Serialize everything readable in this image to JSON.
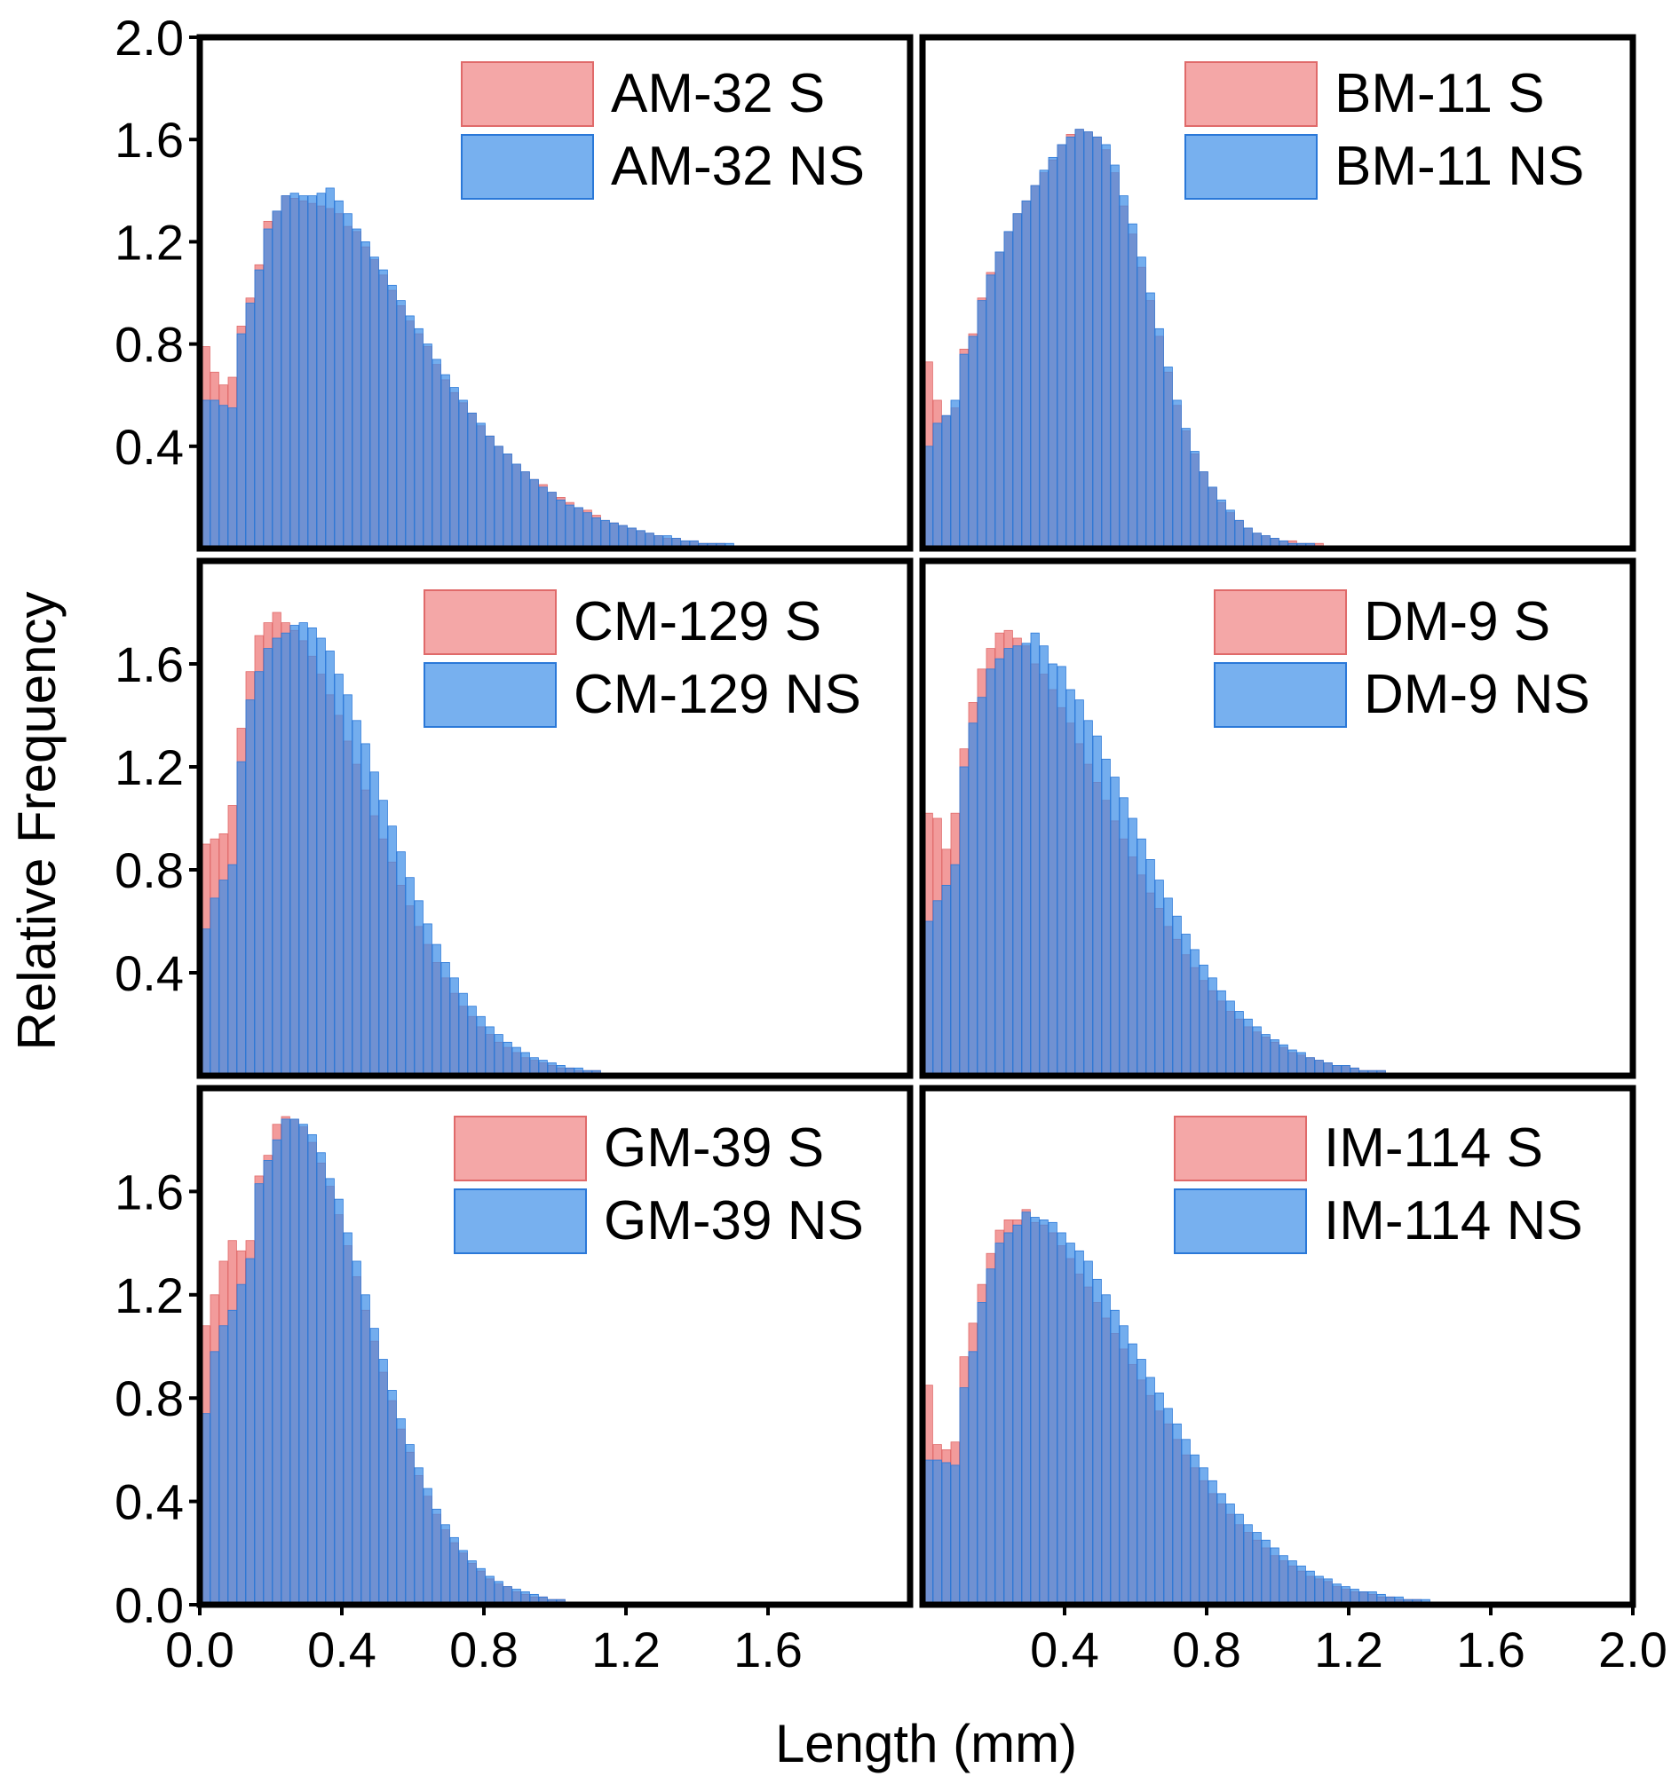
{
  "figure": {
    "ylabel": "Relative Frequency",
    "xlabel": "Length (mm)",
    "colors": {
      "S": "#f08a8a",
      "NS": "#3d8ee8",
      "overlap": "#5a5ed8"
    }
  },
  "chart_data": [
    {
      "type": "bar",
      "title": "",
      "bin_width": 0.025,
      "xlim": [
        0,
        2.0
      ],
      "ylim": [
        0,
        2.0
      ],
      "x_ticks": [],
      "y_ticks": [
        "0.4",
        "0.8",
        "1.2",
        "1.6",
        "2.0"
      ],
      "series": [
        {
          "name": "AM-32 S",
          "values": [
            0.79,
            0.69,
            0.64,
            0.67,
            0.87,
            0.98,
            1.11,
            1.28,
            1.32,
            1.38,
            1.37,
            1.36,
            1.35,
            1.34,
            1.33,
            1.31,
            1.26,
            1.24,
            1.18,
            1.13,
            1.07,
            1.01,
            0.95,
            0.89,
            0.84,
            0.79,
            0.72,
            0.66,
            0.61,
            0.57,
            0.53,
            0.48,
            0.44,
            0.4,
            0.37,
            0.33,
            0.3,
            0.27,
            0.25,
            0.22,
            0.2,
            0.18,
            0.16,
            0.15,
            0.13,
            0.11,
            0.1,
            0.09,
            0.08,
            0.07,
            0.06,
            0.05,
            0.04,
            0.04,
            0.03,
            0.03,
            0.02,
            0.02,
            0.02,
            0.01,
            0.01,
            0.01,
            0.01,
            0.01,
            0.01,
            0.0,
            0.0,
            0.0,
            0.0,
            0.0,
            0.0,
            0.0,
            0.0,
            0.0,
            0.0,
            0.0,
            0.0,
            0.0,
            0.0,
            0.0
          ]
        },
        {
          "name": "AM-32 NS",
          "values": [
            0.58,
            0.58,
            0.56,
            0.55,
            0.84,
            0.96,
            1.09,
            1.25,
            1.32,
            1.38,
            1.39,
            1.38,
            1.38,
            1.39,
            1.41,
            1.36,
            1.31,
            1.25,
            1.2,
            1.14,
            1.09,
            1.03,
            0.97,
            0.91,
            0.86,
            0.8,
            0.74,
            0.68,
            0.63,
            0.58,
            0.53,
            0.49,
            0.44,
            0.4,
            0.37,
            0.33,
            0.3,
            0.27,
            0.24,
            0.22,
            0.19,
            0.17,
            0.16,
            0.14,
            0.12,
            0.11,
            0.1,
            0.09,
            0.08,
            0.07,
            0.06,
            0.05,
            0.05,
            0.04,
            0.03,
            0.03,
            0.02,
            0.02,
            0.02,
            0.02,
            0.01,
            0.01,
            0.01,
            0.01,
            0.01,
            0.01,
            0.0,
            0.0,
            0.0,
            0.0,
            0.0,
            0.0,
            0.0,
            0.0,
            0.0,
            0.0,
            0.0,
            0.0,
            0.0,
            0.0
          ]
        }
      ]
    },
    {
      "type": "bar",
      "title": "",
      "bin_width": 0.025,
      "xlim": [
        0,
        2.0
      ],
      "ylim": [
        0,
        2.0
      ],
      "x_ticks": [],
      "y_ticks": [],
      "series": [
        {
          "name": "BM-11 S",
          "values": [
            0.73,
            0.58,
            0.52,
            0.55,
            0.78,
            0.84,
            0.98,
            1.08,
            1.16,
            1.24,
            1.31,
            1.36,
            1.42,
            1.47,
            1.52,
            1.58,
            1.62,
            1.64,
            1.63,
            1.61,
            1.56,
            1.47,
            1.34,
            1.23,
            1.1,
            0.97,
            0.83,
            0.69,
            0.56,
            0.46,
            0.37,
            0.3,
            0.24,
            0.18,
            0.14,
            0.11,
            0.08,
            0.06,
            0.05,
            0.04,
            0.03,
            0.03,
            0.02,
            0.02,
            0.02,
            0.01,
            0.01,
            0.0,
            0.0,
            0.0,
            0.0,
            0.0,
            0.0,
            0.0,
            0.0,
            0.0,
            0.0,
            0.0,
            0.0,
            0.0,
            0.0,
            0.0,
            0.0,
            0.0,
            0.0,
            0.0,
            0.0,
            0.0,
            0.0,
            0.0,
            0.0,
            0.0,
            0.0,
            0.0,
            0.0,
            0.0,
            0.0,
            0.0,
            0.0,
            0.0
          ]
        },
        {
          "name": "BM-11 NS",
          "values": [
            0.4,
            0.49,
            0.52,
            0.58,
            0.76,
            0.83,
            0.97,
            1.07,
            1.16,
            1.24,
            1.31,
            1.36,
            1.42,
            1.48,
            1.53,
            1.58,
            1.61,
            1.64,
            1.63,
            1.61,
            1.58,
            1.5,
            1.38,
            1.27,
            1.14,
            1.0,
            0.86,
            0.71,
            0.58,
            0.47,
            0.38,
            0.3,
            0.24,
            0.19,
            0.15,
            0.11,
            0.08,
            0.06,
            0.05,
            0.04,
            0.03,
            0.02,
            0.02,
            0.02,
            0.01,
            0.01,
            0.0,
            0.0,
            0.0,
            0.0,
            0.0,
            0.0,
            0.0,
            0.0,
            0.0,
            0.0,
            0.0,
            0.0,
            0.0,
            0.0,
            0.0,
            0.0,
            0.0,
            0.0,
            0.0,
            0.0,
            0.0,
            0.0,
            0.0,
            0.0,
            0.0,
            0.0,
            0.0,
            0.0,
            0.0,
            0.0,
            0.0,
            0.0,
            0.0,
            0.0
          ]
        }
      ]
    },
    {
      "type": "bar",
      "title": "",
      "bin_width": 0.025,
      "xlim": [
        0,
        2.0
      ],
      "ylim": [
        0,
        2.0
      ],
      "x_ticks": [],
      "y_ticks": [
        "0.4",
        "0.8",
        "1.2",
        "1.6"
      ],
      "series": [
        {
          "name": "CM-129 S",
          "values": [
            0.9,
            0.92,
            0.94,
            1.05,
            1.35,
            1.57,
            1.71,
            1.76,
            1.8,
            1.76,
            1.73,
            1.69,
            1.63,
            1.56,
            1.48,
            1.4,
            1.3,
            1.21,
            1.11,
            1.01,
            0.92,
            0.83,
            0.74,
            0.66,
            0.58,
            0.51,
            0.44,
            0.38,
            0.32,
            0.27,
            0.23,
            0.19,
            0.16,
            0.13,
            0.11,
            0.09,
            0.07,
            0.06,
            0.05,
            0.04,
            0.03,
            0.03,
            0.02,
            0.02,
            0.02,
            0.01,
            0.01,
            0.01,
            0.0,
            0.0,
            0.0,
            0.0,
            0.0,
            0.0,
            0.0,
            0.0,
            0.0,
            0.0,
            0.0,
            0.0,
            0.0,
            0.0,
            0.0,
            0.0,
            0.0,
            0.0,
            0.0,
            0.0,
            0.0,
            0.0,
            0.0,
            0.0,
            0.0,
            0.0,
            0.0,
            0.0,
            0.0,
            0.0,
            0.0,
            0.0
          ]
        },
        {
          "name": "CM-129 NS",
          "values": [
            0.57,
            0.69,
            0.76,
            0.82,
            1.22,
            1.46,
            1.57,
            1.66,
            1.7,
            1.72,
            1.75,
            1.76,
            1.74,
            1.7,
            1.65,
            1.56,
            1.48,
            1.38,
            1.29,
            1.18,
            1.07,
            0.97,
            0.87,
            0.77,
            0.68,
            0.59,
            0.51,
            0.44,
            0.38,
            0.32,
            0.27,
            0.23,
            0.19,
            0.16,
            0.13,
            0.11,
            0.09,
            0.07,
            0.06,
            0.05,
            0.04,
            0.03,
            0.03,
            0.02,
            0.02,
            0.01,
            0.01,
            0.01,
            0.0,
            0.0,
            0.0,
            0.0,
            0.0,
            0.0,
            0.0,
            0.0,
            0.0,
            0.0,
            0.0,
            0.0,
            0.0,
            0.0,
            0.0,
            0.0,
            0.0,
            0.0,
            0.0,
            0.0,
            0.0,
            0.0,
            0.0,
            0.0,
            0.0,
            0.0,
            0.0,
            0.0,
            0.0,
            0.0,
            0.0,
            0.0
          ]
        }
      ]
    },
    {
      "type": "bar",
      "title": "",
      "bin_width": 0.025,
      "xlim": [
        0,
        2.0
      ],
      "ylim": [
        0,
        2.0
      ],
      "x_ticks": [],
      "y_ticks": [],
      "series": [
        {
          "name": "DM-9 S",
          "values": [
            1.02,
            1.0,
            0.88,
            1.02,
            1.27,
            1.45,
            1.58,
            1.66,
            1.72,
            1.73,
            1.7,
            1.67,
            1.6,
            1.56,
            1.5,
            1.43,
            1.37,
            1.29,
            1.21,
            1.14,
            1.07,
            0.99,
            0.92,
            0.85,
            0.78,
            0.71,
            0.65,
            0.58,
            0.53,
            0.47,
            0.42,
            0.37,
            0.33,
            0.29,
            0.25,
            0.22,
            0.19,
            0.17,
            0.15,
            0.13,
            0.11,
            0.09,
            0.08,
            0.07,
            0.06,
            0.05,
            0.04,
            0.04,
            0.03,
            0.02,
            0.02,
            0.02,
            0.01,
            0.01,
            0.01,
            0.01,
            0.01,
            0.0,
            0.0,
            0.0,
            0.0,
            0.0,
            0.0,
            0.0,
            0.0,
            0.0,
            0.0,
            0.0,
            0.0,
            0.0,
            0.0,
            0.0,
            0.0,
            0.0,
            0.0,
            0.0,
            0.0,
            0.0,
            0.0,
            0.0
          ]
        },
        {
          "name": "DM-9 NS",
          "values": [
            0.6,
            0.68,
            0.74,
            0.82,
            1.2,
            1.37,
            1.47,
            1.58,
            1.62,
            1.66,
            1.67,
            1.68,
            1.72,
            1.67,
            1.6,
            1.59,
            1.5,
            1.46,
            1.38,
            1.32,
            1.23,
            1.16,
            1.08,
            1.0,
            0.92,
            0.84,
            0.76,
            0.69,
            0.62,
            0.55,
            0.49,
            0.43,
            0.38,
            0.33,
            0.29,
            0.25,
            0.22,
            0.19,
            0.16,
            0.14,
            0.12,
            0.1,
            0.09,
            0.07,
            0.06,
            0.05,
            0.04,
            0.04,
            0.03,
            0.02,
            0.02,
            0.02,
            0.01,
            0.01,
            0.01,
            0.01,
            0.01,
            0.0,
            0.0,
            0.0,
            0.0,
            0.0,
            0.0,
            0.0,
            0.0,
            0.0,
            0.0,
            0.0,
            0.0,
            0.0,
            0.0,
            0.0,
            0.0,
            0.0,
            0.0,
            0.0,
            0.0,
            0.0,
            0.0,
            0.0
          ]
        }
      ]
    },
    {
      "type": "bar",
      "title": "",
      "bin_width": 0.025,
      "xlim": [
        0,
        2.0
      ],
      "ylim": [
        0,
        2.0
      ],
      "x_ticks": [
        "0.0",
        "0.4",
        "0.8",
        "1.2",
        "1.6"
      ],
      "y_ticks": [
        "0.0",
        "0.4",
        "0.8",
        "1.2",
        "1.6"
      ],
      "series": [
        {
          "name": "GM-39 S",
          "values": [
            1.08,
            1.2,
            1.33,
            1.41,
            1.37,
            1.41,
            1.66,
            1.74,
            1.86,
            1.89,
            1.88,
            1.85,
            1.79,
            1.71,
            1.62,
            1.51,
            1.39,
            1.27,
            1.14,
            1.02,
            0.9,
            0.79,
            0.68,
            0.59,
            0.5,
            0.42,
            0.35,
            0.29,
            0.24,
            0.2,
            0.16,
            0.13,
            0.1,
            0.08,
            0.07,
            0.05,
            0.04,
            0.03,
            0.03,
            0.02,
            0.02,
            0.01,
            0.01,
            0.01,
            0.01,
            0.0,
            0.0,
            0.0,
            0.0,
            0.0,
            0.0,
            0.0,
            0.0,
            0.0,
            0.0,
            0.0,
            0.0,
            0.0,
            0.0,
            0.0,
            0.0,
            0.0,
            0.0,
            0.0,
            0.0,
            0.0,
            0.0,
            0.0,
            0.0,
            0.0,
            0.0,
            0.0,
            0.0,
            0.0,
            0.0,
            0.0,
            0.0,
            0.0,
            0.0,
            0.0
          ]
        },
        {
          "name": "GM-39 NS",
          "values": [
            0.74,
            0.98,
            1.08,
            1.14,
            1.24,
            1.34,
            1.63,
            1.72,
            1.8,
            1.88,
            1.88,
            1.86,
            1.82,
            1.75,
            1.65,
            1.57,
            1.44,
            1.33,
            1.2,
            1.07,
            0.95,
            0.83,
            0.72,
            0.62,
            0.53,
            0.45,
            0.37,
            0.31,
            0.26,
            0.21,
            0.17,
            0.14,
            0.11,
            0.09,
            0.07,
            0.06,
            0.05,
            0.04,
            0.03,
            0.02,
            0.02,
            0.01,
            0.01,
            0.01,
            0.01,
            0.0,
            0.0,
            0.0,
            0.0,
            0.0,
            0.0,
            0.0,
            0.0,
            0.0,
            0.0,
            0.0,
            0.0,
            0.0,
            0.0,
            0.0,
            0.0,
            0.0,
            0.0,
            0.0,
            0.0,
            0.0,
            0.0,
            0.0,
            0.0,
            0.0,
            0.0,
            0.0,
            0.0,
            0.0,
            0.0,
            0.0,
            0.0,
            0.0,
            0.0,
            0.0
          ]
        }
      ]
    },
    {
      "type": "bar",
      "title": "",
      "bin_width": 0.025,
      "xlim": [
        0,
        2.0
      ],
      "ylim": [
        0,
        2.0
      ],
      "x_ticks": [
        "0.4",
        "0.8",
        "1.2",
        "1.6",
        "2.0"
      ],
      "y_ticks": [],
      "series": [
        {
          "name": "IM-114 S",
          "values": [
            0.85,
            0.62,
            0.6,
            0.63,
            0.96,
            1.09,
            1.24,
            1.36,
            1.45,
            1.49,
            1.49,
            1.53,
            1.48,
            1.47,
            1.44,
            1.39,
            1.34,
            1.28,
            1.23,
            1.17,
            1.11,
            1.05,
            0.99,
            0.93,
            0.87,
            0.81,
            0.75,
            0.7,
            0.64,
            0.58,
            0.53,
            0.48,
            0.43,
            0.39,
            0.35,
            0.31,
            0.28,
            0.25,
            0.22,
            0.19,
            0.17,
            0.15,
            0.13,
            0.11,
            0.1,
            0.09,
            0.07,
            0.06,
            0.05,
            0.05,
            0.04,
            0.03,
            0.03,
            0.02,
            0.02,
            0.02,
            0.01,
            0.01,
            0.01,
            0.01,
            0.01,
            0.0,
            0.0,
            0.0,
            0.0,
            0.0,
            0.0,
            0.0,
            0.0,
            0.0,
            0.0,
            0.0,
            0.0,
            0.0,
            0.0,
            0.0,
            0.0,
            0.0,
            0.0,
            0.0
          ]
        },
        {
          "name": "IM-114 NS",
          "values": [
            0.56,
            0.56,
            0.55,
            0.54,
            0.84,
            0.98,
            1.17,
            1.3,
            1.4,
            1.44,
            1.47,
            1.52,
            1.5,
            1.49,
            1.48,
            1.44,
            1.4,
            1.37,
            1.33,
            1.26,
            1.2,
            1.14,
            1.08,
            1.01,
            0.95,
            0.88,
            0.82,
            0.76,
            0.7,
            0.64,
            0.58,
            0.53,
            0.48,
            0.43,
            0.39,
            0.35,
            0.31,
            0.28,
            0.25,
            0.22,
            0.19,
            0.17,
            0.15,
            0.13,
            0.11,
            0.1,
            0.08,
            0.07,
            0.06,
            0.05,
            0.05,
            0.04,
            0.03,
            0.03,
            0.02,
            0.02,
            0.02,
            0.01,
            0.01,
            0.01,
            0.01,
            0.01,
            0.0,
            0.0,
            0.0,
            0.0,
            0.0,
            0.0,
            0.0,
            0.0,
            0.0,
            0.0,
            0.0,
            0.0,
            0.0,
            0.0,
            0.0,
            0.0,
            0.0,
            0.0
          ]
        }
      ]
    }
  ]
}
